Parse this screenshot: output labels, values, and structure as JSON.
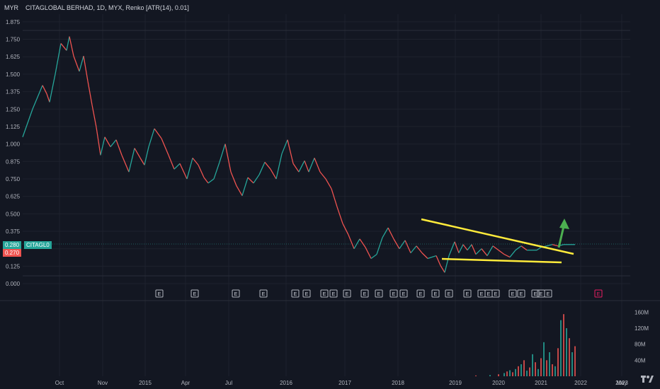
{
  "header": {
    "currency": "MYR",
    "title": "CITAGLOBAL BERHAD, 1D, MYX, Renko [ATR(14), 0.01]"
  },
  "price_labels": {
    "current": "0.280",
    "symbol": "CITAGL0",
    "prev": "0.270"
  },
  "colors": {
    "background": "#131722",
    "up": "#26a69a",
    "down": "#ef5350",
    "trendline": "#ffeb3b",
    "arrow": "#4caf50",
    "grid": "#1e222d"
  },
  "earnings_markers": [
    "E",
    "E",
    "E",
    "E",
    "E",
    "E",
    "E",
    "E",
    "E",
    "E",
    "E",
    "E",
    "E",
    "E",
    "E",
    "E",
    "E",
    "E",
    "E",
    "E",
    "E",
    "E",
    "E",
    "E",
    "E",
    "E",
    "E"
  ],
  "chart_data": [
    {
      "type": "line",
      "name": "price",
      "y_ticks": [
        "1.875",
        "1.750",
        "1.625",
        "1.500",
        "1.375",
        "1.250",
        "1.125",
        "1.000",
        "0.875",
        "0.750",
        "0.625",
        "0.500",
        "0.375",
        "0.250",
        "0.125",
        "0.000"
      ],
      "x_ticks": [
        "Oct",
        "Nov",
        "2015",
        "Apr",
        "Jul",
        "2016",
        "2017",
        "2018",
        "2019",
        "2020",
        "2021",
        "2022",
        "2023",
        "May"
      ],
      "ylim": [
        -0.02,
        1.93
      ],
      "x": [
        0,
        14,
        28,
        34,
        38,
        46,
        54,
        62,
        66,
        72,
        80,
        86,
        92,
        98,
        104,
        110,
        116,
        124,
        132,
        140,
        150,
        158,
        166,
        172,
        178,
        186,
        196,
        206,
        214,
        222,
        232,
        240,
        248,
        256,
        262,
        270,
        278,
        286,
        294,
        302,
        310,
        318,
        326,
        334,
        342,
        350,
        358,
        366,
        374,
        382,
        390,
        398,
        404,
        412,
        420,
        428,
        436,
        444,
        452,
        460,
        468,
        476,
        484,
        492,
        500,
        508,
        516,
        524,
        532,
        540,
        548,
        556,
        564,
        572,
        578,
        584,
        590,
        596,
        602,
        610,
        616,
        622,
        628,
        634,
        640,
        648,
        656,
        664,
        672,
        680,
        688,
        696,
        704,
        712,
        720,
        726,
        732,
        740,
        748,
        756,
        764,
        772,
        780
      ],
      "values": [
        1.05,
        1.25,
        1.42,
        1.36,
        1.3,
        1.5,
        1.72,
        1.67,
        1.77,
        1.63,
        1.52,
        1.63,
        1.45,
        1.28,
        1.12,
        0.92,
        1.05,
        0.98,
        1.03,
        0.92,
        0.8,
        0.97,
        0.9,
        0.85,
        0.98,
        1.11,
        1.04,
        0.92,
        0.82,
        0.86,
        0.75,
        0.9,
        0.85,
        0.76,
        0.72,
        0.75,
        0.87,
        1.0,
        0.8,
        0.7,
        0.63,
        0.76,
        0.72,
        0.78,
        0.87,
        0.82,
        0.75,
        0.93,
        1.03,
        0.86,
        0.8,
        0.88,
        0.8,
        0.9,
        0.8,
        0.75,
        0.68,
        0.55,
        0.43,
        0.35,
        0.25,
        0.32,
        0.26,
        0.18,
        0.21,
        0.33,
        0.4,
        0.32,
        0.25,
        0.31,
        0.22,
        0.27,
        0.22,
        0.18,
        0.19,
        0.2,
        0.13,
        0.08,
        0.2,
        0.3,
        0.22,
        0.28,
        0.24,
        0.28,
        0.21,
        0.25,
        0.2,
        0.27,
        0.24,
        0.21,
        0.19,
        0.24,
        0.27,
        0.24,
        0.24,
        0.24,
        0.26,
        0.27,
        0.28,
        0.27,
        0.28,
        0.28,
        0.28
      ]
    },
    {
      "type": "bar",
      "name": "volume",
      "y_ticks": [
        "160M",
        "120M",
        "80M",
        "40M"
      ],
      "ylim": [
        0,
        180
      ],
      "x": [
        640,
        660,
        672,
        680,
        684,
        688,
        692,
        696,
        700,
        704,
        708,
        712,
        716,
        720,
        724,
        728,
        732,
        736,
        740,
        744,
        748,
        752,
        756,
        760,
        764,
        768,
        772,
        776,
        780
      ],
      "values": [
        2,
        3,
        5,
        8,
        12,
        15,
        10,
        18,
        25,
        30,
        40,
        14,
        22,
        55,
        35,
        18,
        45,
        85,
        40,
        60,
        30,
        25,
        70,
        140,
        155,
        120,
        95,
        60,
        75
      ]
    }
  ]
}
